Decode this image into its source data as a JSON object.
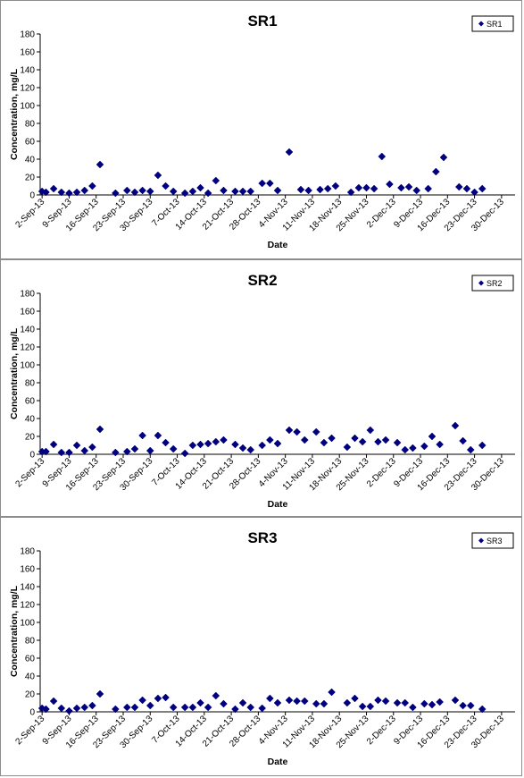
{
  "chart_data": [
    {
      "type": "scatter",
      "title": "SR1",
      "xlabel": "Date",
      "ylabel": "Concentration, mg/L",
      "ylim": [
        0,
        180
      ],
      "yticks": [
        "0",
        "20",
        "40",
        "60",
        "80",
        "100",
        "120",
        "140",
        "160",
        "180"
      ],
      "xticks": [
        "2-Sep-13",
        "9-Sep-13",
        "16-Sep-13",
        "23-Sep-13",
        "30-Sep-13",
        "7-Oct-13",
        "14-Oct-13",
        "21-Oct-13",
        "28-Oct-13",
        "4-Nov-13",
        "11-Nov-13",
        "18-Nov-13",
        "25-Nov-13",
        "2-Dec-13",
        "9-Dec-13",
        "16-Dec-13",
        "23-Dec-13",
        "30-Dec-13"
      ],
      "legend": "top-right",
      "grid": false,
      "marker_color": "#000080",
      "series": [
        {
          "name": "SR1",
          "points": [
            [
              "2-Sep-13",
              4
            ],
            [
              "3-Sep-13",
              3
            ],
            [
              "5-Sep-13",
              7
            ],
            [
              "7-Sep-13",
              3
            ],
            [
              "9-Sep-13",
              2
            ],
            [
              "11-Sep-13",
              3
            ],
            [
              "13-Sep-13",
              5
            ],
            [
              "15-Sep-13",
              10
            ],
            [
              "17-Sep-13",
              34
            ],
            [
              "21-Sep-13",
              2
            ],
            [
              "24-Sep-13",
              5
            ],
            [
              "26-Sep-13",
              3
            ],
            [
              "28-Sep-13",
              5
            ],
            [
              "30-Sep-13",
              4
            ],
            [
              "2-Oct-13",
              22
            ],
            [
              "4-Oct-13",
              10
            ],
            [
              "6-Oct-13",
              4
            ],
            [
              "9-Oct-13",
              2
            ],
            [
              "11-Oct-13",
              4
            ],
            [
              "13-Oct-13",
              8
            ],
            [
              "15-Oct-13",
              2
            ],
            [
              "17-Oct-13",
              16
            ],
            [
              "19-Oct-13",
              5
            ],
            [
              "22-Oct-13",
              4
            ],
            [
              "24-Oct-13",
              4
            ],
            [
              "26-Oct-13",
              4
            ],
            [
              "29-Oct-13",
              13
            ],
            [
              "31-Oct-13",
              13
            ],
            [
              "2-Nov-13",
              5
            ],
            [
              "5-Nov-13",
              48
            ],
            [
              "8-Nov-13",
              6
            ],
            [
              "10-Nov-13",
              5
            ],
            [
              "13-Nov-13",
              6
            ],
            [
              "15-Nov-13",
              7
            ],
            [
              "17-Nov-13",
              10
            ],
            [
              "21-Nov-13",
              3
            ],
            [
              "23-Nov-13",
              8
            ],
            [
              "25-Nov-13",
              8
            ],
            [
              "27-Nov-13",
              7
            ],
            [
              "29-Nov-13",
              43
            ],
            [
              "1-Dec-13",
              12
            ],
            [
              "4-Dec-13",
              8
            ],
            [
              "6-Dec-13",
              9
            ],
            [
              "8-Dec-13",
              5
            ],
            [
              "11-Dec-13",
              7
            ],
            [
              "13-Dec-13",
              26
            ],
            [
              "15-Dec-13",
              42
            ],
            [
              "19-Dec-13",
              9
            ],
            [
              "21-Dec-13",
              7
            ],
            [
              "23-Dec-13",
              3
            ],
            [
              "25-Dec-13",
              7
            ]
          ]
        }
      ]
    },
    {
      "type": "scatter",
      "title": "SR2",
      "xlabel": "Date",
      "ylabel": "Concentration, mg/L",
      "ylim": [
        0,
        180
      ],
      "yticks": [
        "0",
        "20",
        "40",
        "60",
        "80",
        "100",
        "120",
        "140",
        "160",
        "180"
      ],
      "xticks": [
        "2-Sep-13",
        "9-Sep-13",
        "16-Sep-13",
        "23-Sep-13",
        "30-Sep-13",
        "7-Oct-13",
        "14-Oct-13",
        "21-Oct-13",
        "28-Oct-13",
        "4-Nov-13",
        "11-Nov-13",
        "18-Nov-13",
        "25-Nov-13",
        "2-Dec-13",
        "9-Dec-13",
        "16-Dec-13",
        "23-Dec-13",
        "30-Dec-13"
      ],
      "legend": "top-right",
      "grid": false,
      "marker_color": "#000080",
      "series": [
        {
          "name": "SR2",
          "points": [
            [
              "2-Sep-13",
              3
            ],
            [
              "3-Sep-13",
              3
            ],
            [
              "5-Sep-13",
              11
            ],
            [
              "7-Sep-13",
              2
            ],
            [
              "9-Sep-13",
              2
            ],
            [
              "11-Sep-13",
              10
            ],
            [
              "13-Sep-13",
              4
            ],
            [
              "15-Sep-13",
              8
            ],
            [
              "17-Sep-13",
              28
            ],
            [
              "21-Sep-13",
              2
            ],
            [
              "24-Sep-13",
              3
            ],
            [
              "26-Sep-13",
              6
            ],
            [
              "28-Sep-13",
              21
            ],
            [
              "30-Sep-13",
              4
            ],
            [
              "2-Oct-13",
              21
            ],
            [
              "4-Oct-13",
              13
            ],
            [
              "6-Oct-13",
              6
            ],
            [
              "9-Oct-13",
              1
            ],
            [
              "11-Oct-13",
              10
            ],
            [
              "13-Oct-13",
              11
            ],
            [
              "15-Oct-13",
              12
            ],
            [
              "17-Oct-13",
              14
            ],
            [
              "19-Oct-13",
              16
            ],
            [
              "22-Oct-13",
              11
            ],
            [
              "24-Oct-13",
              7
            ],
            [
              "26-Oct-13",
              5
            ],
            [
              "29-Oct-13",
              10
            ],
            [
              "31-Oct-13",
              16
            ],
            [
              "2-Nov-13",
              12
            ],
            [
              "5-Nov-13",
              27
            ],
            [
              "7-Nov-13",
              25
            ],
            [
              "9-Nov-13",
              16
            ],
            [
              "12-Nov-13",
              25
            ],
            [
              "14-Nov-13",
              13
            ],
            [
              "16-Nov-13",
              18
            ],
            [
              "20-Nov-13",
              8
            ],
            [
              "22-Nov-13",
              18
            ],
            [
              "24-Nov-13",
              14
            ],
            [
              "26-Nov-13",
              27
            ],
            [
              "28-Nov-13",
              14
            ],
            [
              "30-Nov-13",
              16
            ],
            [
              "3-Dec-13",
              13
            ],
            [
              "5-Dec-13",
              5
            ],
            [
              "7-Dec-13",
              7
            ],
            [
              "10-Dec-13",
              9
            ],
            [
              "12-Dec-13",
              20
            ],
            [
              "14-Dec-13",
              11
            ],
            [
              "18-Dec-13",
              32
            ],
            [
              "20-Dec-13",
              15
            ],
            [
              "22-Dec-13",
              5
            ],
            [
              "25-Dec-13",
              10
            ]
          ]
        }
      ]
    },
    {
      "type": "scatter",
      "title": "SR3",
      "xlabel": "Date",
      "ylabel": "Concentration, mg/L",
      "ylim": [
        0,
        180
      ],
      "yticks": [
        "0",
        "20",
        "40",
        "60",
        "80",
        "100",
        "120",
        "140",
        "160",
        "180"
      ],
      "xticks": [
        "2-Sep-13",
        "9-Sep-13",
        "16-Sep-13",
        "23-Sep-13",
        "30-Sep-13",
        "7-Oct-13",
        "14-Oct-13",
        "21-Oct-13",
        "28-Oct-13",
        "4-Nov-13",
        "11-Nov-13",
        "18-Nov-13",
        "25-Nov-13",
        "2-Dec-13",
        "9-Dec-13",
        "16-Dec-13",
        "23-Dec-13",
        "30-Dec-13"
      ],
      "legend": "top-right",
      "grid": false,
      "marker_color": "#000080",
      "series": [
        {
          "name": "SR3",
          "points": [
            [
              "2-Sep-13",
              4
            ],
            [
              "3-Sep-13",
              3
            ],
            [
              "5-Sep-13",
              12
            ],
            [
              "7-Sep-13",
              4
            ],
            [
              "9-Sep-13",
              1
            ],
            [
              "11-Sep-13",
              4
            ],
            [
              "13-Sep-13",
              5
            ],
            [
              "15-Sep-13",
              7
            ],
            [
              "17-Sep-13",
              20
            ],
            [
              "21-Sep-13",
              3
            ],
            [
              "24-Sep-13",
              5
            ],
            [
              "26-Sep-13",
              5
            ],
            [
              "28-Sep-13",
              13
            ],
            [
              "30-Sep-13",
              7
            ],
            [
              "2-Oct-13",
              15
            ],
            [
              "4-Oct-13",
              16
            ],
            [
              "6-Oct-13",
              5
            ],
            [
              "9-Oct-13",
              5
            ],
            [
              "11-Oct-13",
              5
            ],
            [
              "13-Oct-13",
              10
            ],
            [
              "15-Oct-13",
              5
            ],
            [
              "17-Oct-13",
              18
            ],
            [
              "19-Oct-13",
              9
            ],
            [
              "22-Oct-13",
              3
            ],
            [
              "24-Oct-13",
              10
            ],
            [
              "26-Oct-13",
              5
            ],
            [
              "29-Oct-13",
              4
            ],
            [
              "31-Oct-13",
              15
            ],
            [
              "2-Nov-13",
              10
            ],
            [
              "5-Nov-13",
              13
            ],
            [
              "7-Nov-13",
              12
            ],
            [
              "9-Nov-13",
              12
            ],
            [
              "12-Nov-13",
              9
            ],
            [
              "14-Nov-13",
              9
            ],
            [
              "16-Nov-13",
              22
            ],
            [
              "20-Nov-13",
              10
            ],
            [
              "22-Nov-13",
              15
            ],
            [
              "24-Nov-13",
              6
            ],
            [
              "26-Nov-13",
              6
            ],
            [
              "28-Nov-13",
              13
            ],
            [
              "30-Nov-13",
              12
            ],
            [
              "3-Dec-13",
              10
            ],
            [
              "5-Dec-13",
              10
            ],
            [
              "7-Dec-13",
              5
            ],
            [
              "10-Dec-13",
              9
            ],
            [
              "12-Dec-13",
              8
            ],
            [
              "14-Dec-13",
              11
            ],
            [
              "18-Dec-13",
              13
            ],
            [
              "20-Dec-13",
              7
            ],
            [
              "22-Dec-13",
              7
            ],
            [
              "25-Dec-13",
              3
            ]
          ]
        }
      ]
    }
  ]
}
